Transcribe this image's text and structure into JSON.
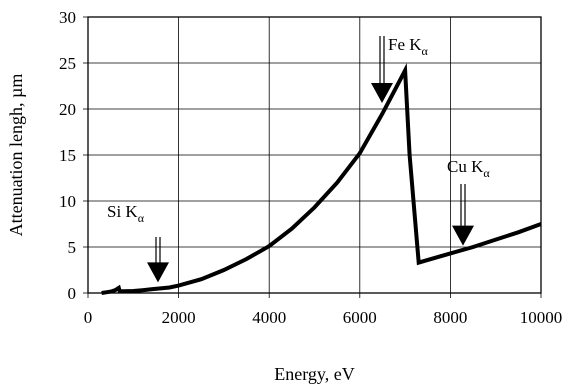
{
  "chart_data": {
    "type": "line",
    "title": "",
    "xlabel": "Energy, eV",
    "ylabel": "Attenuation lengh, µm",
    "xlim": [
      0,
      10000
    ],
    "ylim": [
      0,
      30
    ],
    "xticks": [
      0,
      2000,
      4000,
      6000,
      8000,
      10000
    ],
    "yticks": [
      0,
      5,
      10,
      15,
      20,
      25,
      30
    ],
    "grid": true,
    "legend": "none",
    "series": [
      {
        "values_x": [
          300,
          400,
          500,
          600,
          680,
          700,
          720,
          800,
          1000,
          1200,
          1400,
          1600,
          1800,
          2000,
          2500,
          3000,
          3500,
          4000,
          4500,
          5000,
          5500,
          6000,
          6500,
          6800,
          7000,
          7100,
          7300,
          7500,
          8000,
          8500,
          9000,
          9500,
          10000
        ],
        "values_y": [
          0.0,
          0.08,
          0.15,
          0.3,
          0.55,
          0.2,
          0.18,
          0.2,
          0.22,
          0.3,
          0.4,
          0.5,
          0.6,
          0.8,
          1.5,
          2.5,
          3.7,
          5.1,
          7.0,
          9.3,
          12.0,
          15.2,
          19.5,
          22.3,
          24.2,
          15.0,
          3.3,
          3.6,
          4.3,
          5.0,
          5.8,
          6.6,
          7.5
        ]
      }
    ],
    "annotations": [
      {
        "id": "si",
        "label": "Si K",
        "sub": "α",
        "x": 1600,
        "y": 0.5
      },
      {
        "id": "fe",
        "label": "Fe K",
        "sub": "α",
        "x": 6500,
        "y": 20.0
      },
      {
        "id": "cu",
        "label": "Cu K",
        "sub": "α",
        "x": 8300,
        "y": 4.5
      }
    ]
  }
}
